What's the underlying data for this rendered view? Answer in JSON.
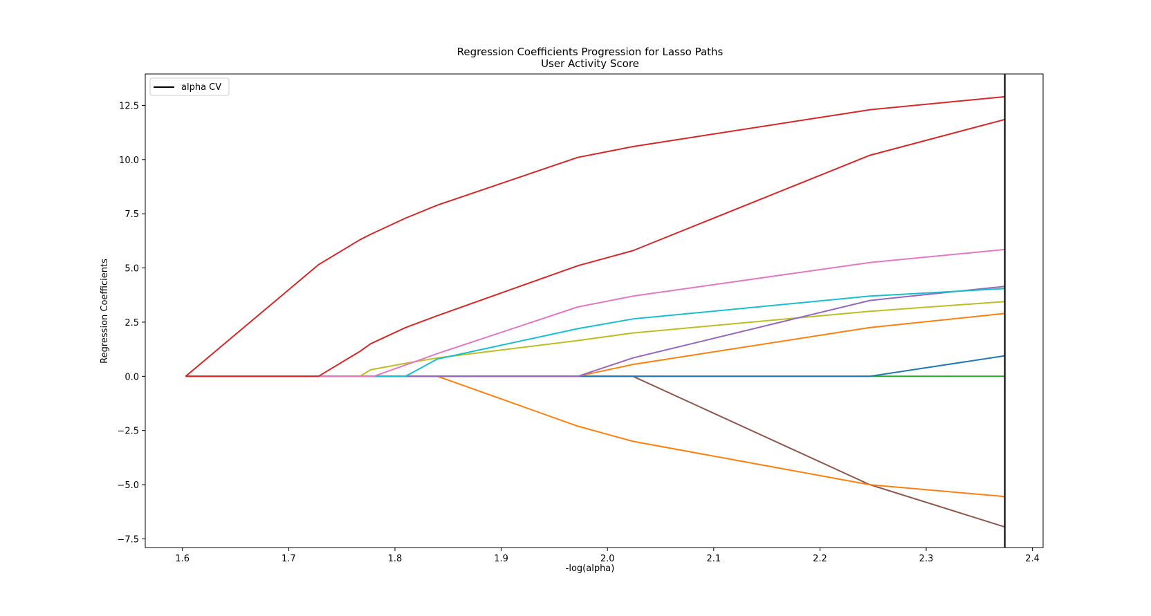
{
  "chart_data": {
    "type": "line",
    "title": "Regression Coefficients Progression for Lasso Paths",
    "subtitle": "User Activity Score",
    "xlabel": "-log(alpha)",
    "ylabel": "Regression Coefficients",
    "xlim": [
      1.565,
      2.41
    ],
    "ylim": [
      -7.9,
      13.95
    ],
    "xticks": [
      1.6,
      1.7,
      1.8,
      1.9,
      2.0,
      2.1,
      2.2,
      2.3,
      2.4
    ],
    "xtick_labels": [
      "1.6",
      "1.7",
      "1.8",
      "1.9",
      "2.0",
      "2.1",
      "2.2",
      "2.3",
      "2.4"
    ],
    "yticks": [
      -7.5,
      -5.0,
      -2.5,
      0.0,
      2.5,
      5.0,
      7.5,
      10.0,
      12.5
    ],
    "ytick_labels": [
      "−7.5",
      "−5.0",
      "−2.5",
      "0.0",
      "2.5",
      "5.0",
      "7.5",
      "10.0",
      "12.5"
    ],
    "grid": false,
    "legend": {
      "position": "top-left",
      "entries": [
        "alpha CV"
      ]
    },
    "vline": {
      "label": "alpha CV",
      "x": 2.374,
      "color": "#000000"
    },
    "series": [
      {
        "color": "#d62728",
        "x": [
          1.603,
          1.728,
          1.767,
          1.777,
          1.81,
          1.84,
          1.972,
          2.024,
          2.247,
          2.374
        ],
        "values": [
          0.0,
          5.15,
          6.3,
          6.55,
          7.3,
          7.9,
          10.1,
          10.6,
          12.3,
          12.9
        ]
      },
      {
        "color": "#d62728",
        "x": [
          1.603,
          1.728,
          1.767,
          1.777,
          1.81,
          1.84,
          1.972,
          2.024,
          2.247,
          2.374
        ],
        "values": [
          0.0,
          0.0,
          1.15,
          1.5,
          2.25,
          2.8,
          5.1,
          5.8,
          10.2,
          11.85
        ]
      },
      {
        "color": "#e377c2",
        "x": [
          1.603,
          1.78,
          1.84,
          1.972,
          2.024,
          2.247,
          2.374
        ],
        "values": [
          0.0,
          0.0,
          1.05,
          3.2,
          3.7,
          5.25,
          5.85
        ]
      },
      {
        "color": "#17becf",
        "x": [
          1.603,
          1.81,
          1.84,
          1.972,
          2.024,
          2.247,
          2.374
        ],
        "values": [
          0.0,
          0.0,
          0.8,
          2.2,
          2.65,
          3.7,
          4.05
        ]
      },
      {
        "color": "#9467bd",
        "x": [
          1.603,
          1.972,
          2.024,
          2.247,
          2.374
        ],
        "values": [
          0.0,
          0.0,
          0.85,
          3.5,
          4.15
        ]
      },
      {
        "color": "#bcbd22",
        "x": [
          1.603,
          1.767,
          1.777,
          1.81,
          1.84,
          1.972,
          2.024,
          2.247,
          2.374
        ],
        "values": [
          0.0,
          0.0,
          0.3,
          0.6,
          0.85,
          1.65,
          2.0,
          3.0,
          3.45
        ]
      },
      {
        "color": "#ff7f0e",
        "x": [
          1.603,
          1.972,
          2.024,
          2.247,
          2.374
        ],
        "values": [
          0.0,
          0.0,
          0.55,
          2.25,
          2.9
        ]
      },
      {
        "color": "#1f77b4",
        "x": [
          1.603,
          2.247,
          2.374
        ],
        "values": [
          0.0,
          0.0,
          0.95
        ]
      },
      {
        "color": "#ff7f0e",
        "x": [
          1.603,
          1.84,
          1.972,
          2.024,
          2.247,
          2.374
        ],
        "values": [
          0.0,
          0.0,
          -2.3,
          -3.0,
          -5.0,
          -5.55
        ]
      },
      {
        "color": "#8c564b",
        "x": [
          1.603,
          2.024,
          2.247,
          2.374
        ],
        "values": [
          0.0,
          0.0,
          -5.0,
          -6.95
        ]
      },
      {
        "color": "#2ca02c",
        "x": [
          1.603,
          2.374
        ],
        "values": [
          0.0,
          0.0
        ]
      }
    ]
  }
}
